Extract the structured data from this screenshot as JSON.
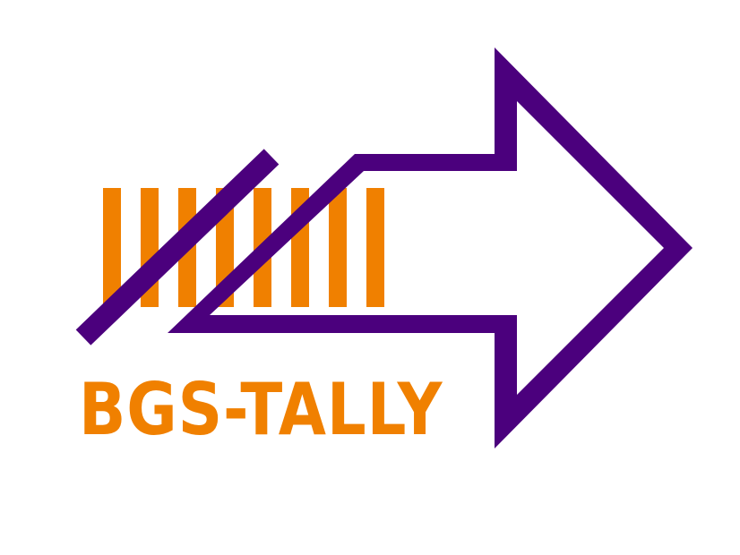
{
  "logo": {
    "wordmark": "BGS-TALLY",
    "tally_mark_count": 8,
    "colors": {
      "orange": "#f08000",
      "purple": "#4b007d",
      "background": "#ffffff"
    },
    "icons": [
      "tally-marks-icon",
      "strike-through-icon",
      "arrow-icon"
    ]
  }
}
